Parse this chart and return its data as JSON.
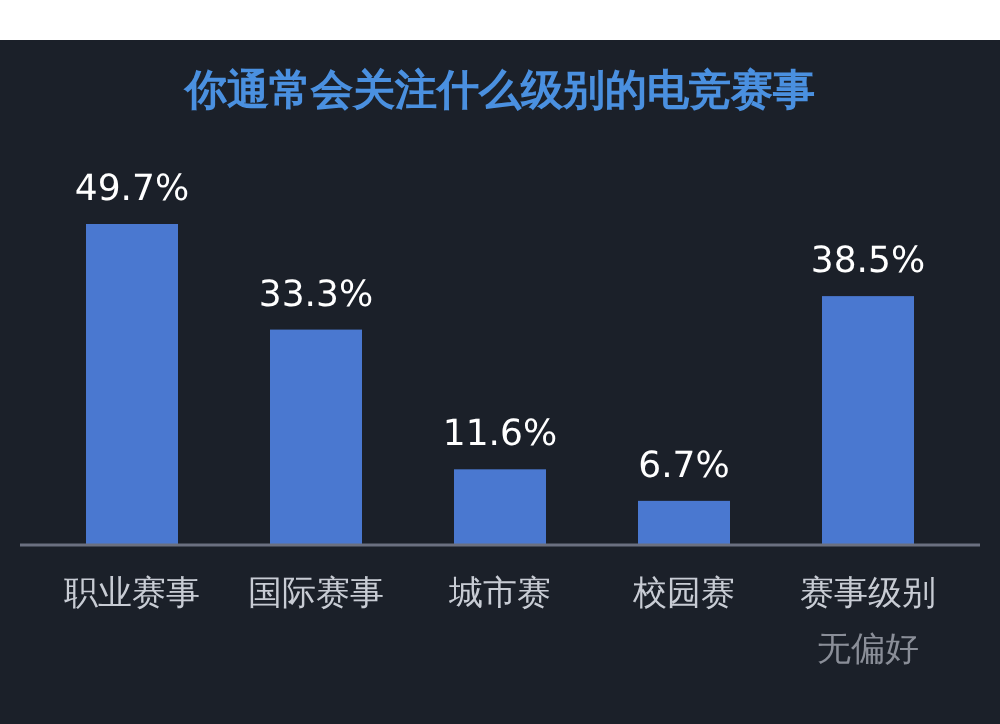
{
  "chart_data": {
    "type": "bar",
    "title": "你通常会关注什么级别的电竞赛事",
    "categories": [
      "职业赛事",
      "国际赛事",
      "城市赛",
      "校园赛",
      "赛事级别"
    ],
    "values": [
      49.7,
      33.3,
      11.6,
      6.7,
      38.5
    ],
    "value_labels": [
      "49.7%",
      "33.3%",
      "11.6%",
      "6.7%",
      "38.5%"
    ],
    "color": "#4a78d0",
    "annotations": [
      "无偏好"
    ]
  }
}
